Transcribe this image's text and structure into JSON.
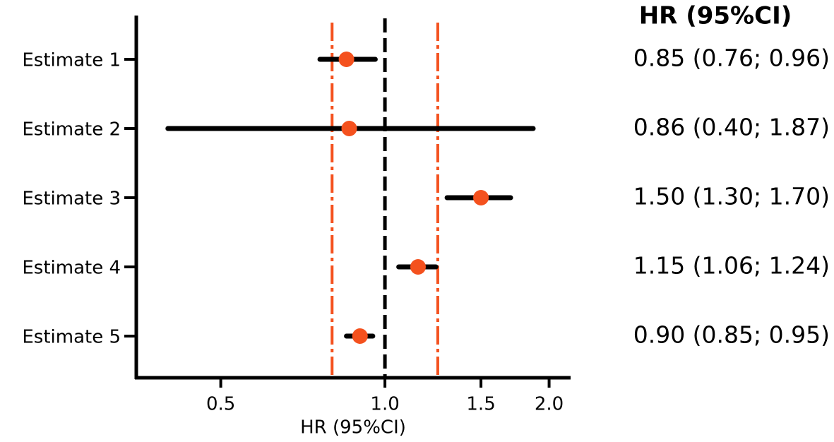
{
  "chart_data": {
    "type": "forest",
    "xlabel": "HR (95%CI)",
    "column_title": "HR (95%CI)",
    "categories": [
      "Estimate 1",
      "Estimate 2",
      "Estimate 3",
      "Estimate 4",
      "Estimate 5"
    ],
    "values": [
      0.85,
      0.86,
      1.5,
      1.15,
      0.9
    ],
    "lower": [
      0.76,
      0.4,
      1.3,
      1.06,
      0.85
    ],
    "upper": [
      0.96,
      1.87,
      1.7,
      1.24,
      0.95
    ],
    "value_labels": [
      "0.85 (0.76; 0.96)",
      "0.86 (0.40; 1.87)",
      "1.50 (1.30; 1.70)",
      "1.15 (1.06; 1.24)",
      "0.90 (0.85; 0.95)"
    ],
    "xlim": [
      0.35,
      2.19
    ],
    "xticks": [
      0.5,
      {
        "value": 1,
        "label": "1.0"
      },
      1.5,
      {
        "value": 2,
        "label": "2.0"
      }
    ],
    "xscale": "log",
    "reference_line": 1,
    "bounds": [
      0.8,
      1.25
    ],
    "color": "#f4511e",
    "line_color": "#000000",
    "bound_color": "#f4511e"
  }
}
